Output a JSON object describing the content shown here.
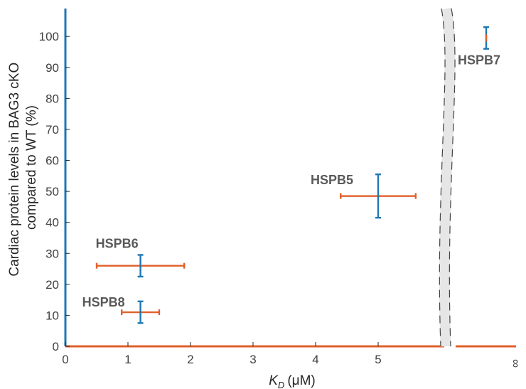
{
  "chart_data": {
    "type": "scatter",
    "title": "",
    "ylabel_line1": "Cardiac protein levels in BAG3 cKO",
    "ylabel_line2": "compared to WT (%)",
    "xlabel_main": "K",
    "xlabel_sub": "D",
    "xlabel_unit": "(μM)",
    "x_ticks": [
      "0",
      "1",
      "2",
      "3",
      "4",
      "5"
    ],
    "x_tick_values": [
      0,
      1,
      2,
      3,
      4,
      5
    ],
    "x_break_label": "∞",
    "y_ticks": [
      "0",
      "10",
      "20",
      "30",
      "40",
      "50",
      "60",
      "70",
      "80",
      "90",
      "100"
    ],
    "y_tick_values": [
      0,
      10,
      20,
      30,
      40,
      50,
      60,
      70,
      80,
      90,
      100
    ],
    "xlim": [
      0,
      6
    ],
    "ylim": [
      0,
      109
    ],
    "x_axis_break": true,
    "grid": false,
    "colors": {
      "y_error": "#1f77b4",
      "x_error": "#e0602b",
      "left_axis": "#1f77b4",
      "bottom_axis": "#e0602b",
      "break_band": "#e6e6e6",
      "break_dash": "#444444"
    },
    "points": [
      {
        "label": "HSPB8",
        "x": 1.2,
        "y": 11,
        "x_err": [
          0.9,
          1.5
        ],
        "y_err": [
          7.5,
          14.5
        ]
      },
      {
        "label": "HSPB6",
        "x": 1.2,
        "y": 26,
        "x_err": [
          0.5,
          1.9
        ],
        "y_err": [
          22.5,
          29.5
        ]
      },
      {
        "label": "HSPB5",
        "x": 5.0,
        "y": 48.5,
        "x_err": [
          4.4,
          5.6
        ],
        "y_err": [
          41.5,
          55.5
        ]
      },
      {
        "label": "HSPB7",
        "x": "∞",
        "y": 99.5,
        "x_err": null,
        "y_err": [
          96,
          103
        ]
      }
    ]
  }
}
